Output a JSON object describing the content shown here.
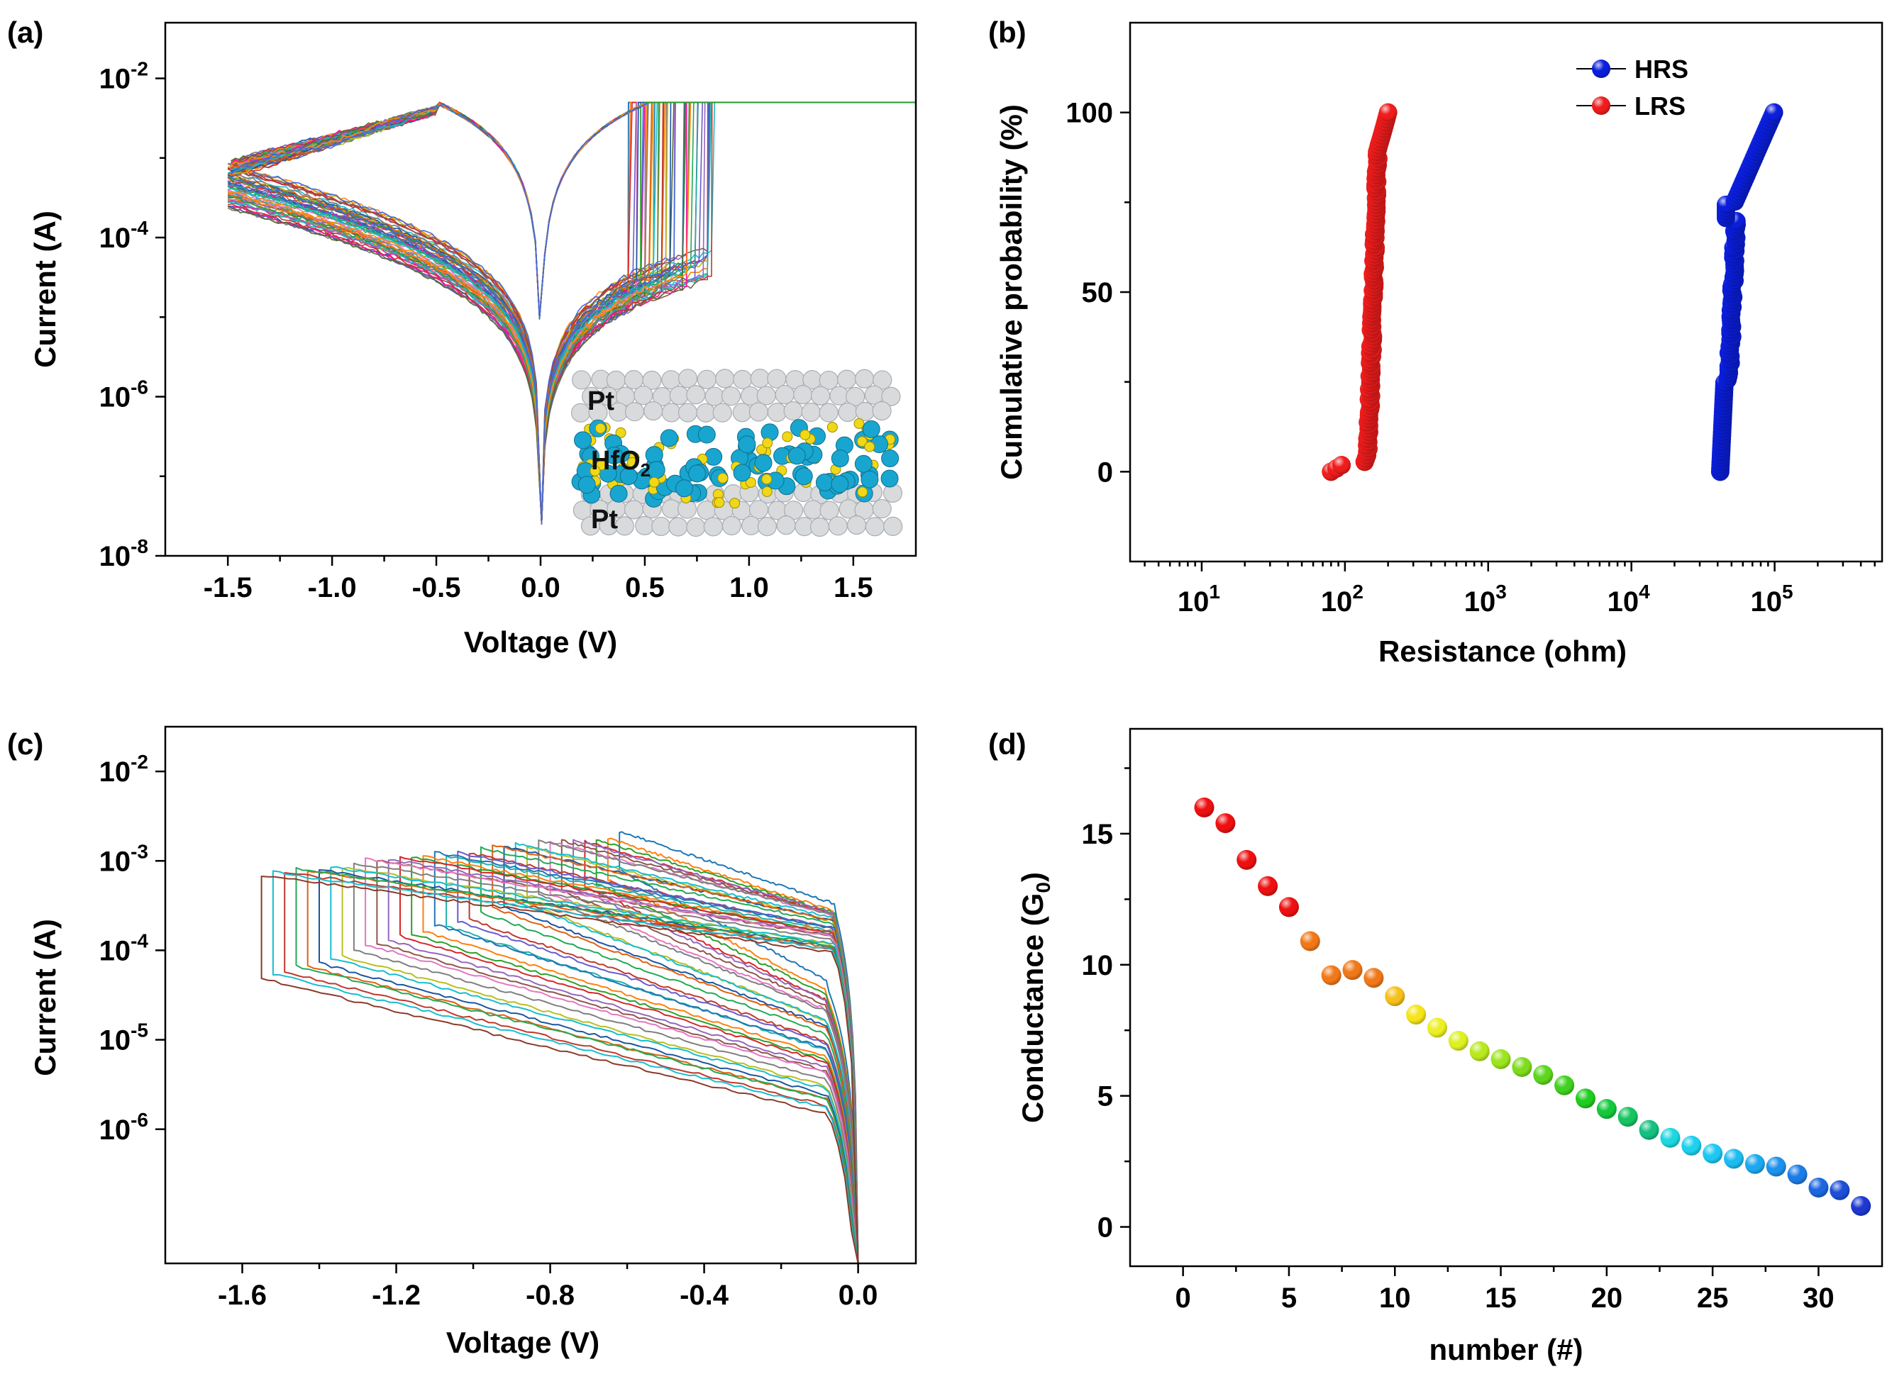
{
  "chart_data": [
    {
      "panel": "(a)",
      "type": "line",
      "xlabel": "Voltage (V)",
      "ylabel": "Current (A)",
      "yscale": "log",
      "xlim": [
        -1.8,
        1.8
      ],
      "ylim_exp": [
        -8,
        -1.3
      ],
      "xticks": [
        -1.5,
        -1.0,
        -0.5,
        0.0,
        0.5,
        1.0,
        1.5
      ],
      "xtick_labels": [
        "-1.5",
        "-1.0",
        "-0.5",
        "0.0",
        "0.5",
        "1.0",
        "1.5"
      ],
      "yticks_exp": [
        -8,
        -6,
        -4,
        -2
      ],
      "compliance_A": 0.005,
      "cycles": 60,
      "inset": {
        "top_label": "Pt",
        "middle_label_main": "HfO",
        "middle_label_sub": "2",
        "bottom_label": "Pt"
      }
    },
    {
      "panel": "(b)",
      "type": "scatter",
      "xlabel": "Resistance (ohm)",
      "ylabel": "Cumulative probability (%)",
      "xscale": "log",
      "xlim_exp": [
        0.5,
        5.75
      ],
      "ylim": [
        -25,
        125
      ],
      "xticks_exp": [
        1,
        2,
        3,
        4,
        5
      ],
      "yticks": [
        0,
        50,
        100
      ],
      "ytick_labels": [
        "0",
        "50",
        "100"
      ],
      "legend_position": "top-right",
      "series": [
        {
          "name": "HRS",
          "color": "#0a1edc",
          "range_ohm": [
            40000,
            100000
          ]
        },
        {
          "name": "LRS",
          "color": "#ee1c1c",
          "range_ohm": [
            80,
            200
          ]
        }
      ]
    },
    {
      "panel": "(c)",
      "type": "line",
      "xlabel": "Voltage (V)",
      "ylabel": "Current (A)",
      "yscale": "log",
      "xlim": [
        -1.8,
        0.15
      ],
      "ylim_exp": [
        -7.5,
        -1.5
      ],
      "xticks": [
        -1.6,
        -1.2,
        -0.8,
        -0.4,
        0.0
      ],
      "xtick_labels": [
        "-1.6",
        "-1.2",
        "-0.8",
        "-0.4",
        "0.0"
      ],
      "yticks_exp": [
        -6,
        -5,
        -4,
        -3,
        -2
      ],
      "cycles": 32
    },
    {
      "panel": "(d)",
      "type": "scatter",
      "xlabel": "number (#)",
      "ylabel_main": "Conductance (G",
      "ylabel_sub": "0",
      "ylabel_end": ")",
      "xlim": [
        -2.5,
        33
      ],
      "ylim": [
        -1.5,
        19
      ],
      "xticks": [
        0,
        5,
        10,
        15,
        20,
        25,
        30
      ],
      "yticks": [
        0,
        5,
        10,
        15
      ],
      "x": [
        1,
        2,
        3,
        4,
        5,
        6,
        7,
        8,
        9,
        10,
        11,
        12,
        13,
        14,
        15,
        16,
        17,
        18,
        19,
        20,
        21,
        22,
        23,
        24,
        25,
        26,
        27,
        28,
        29,
        30,
        31,
        32
      ],
      "values": [
        16.0,
        15.4,
        14.0,
        13.0,
        12.2,
        10.9,
        9.6,
        9.8,
        9.5,
        8.8,
        8.1,
        7.6,
        7.1,
        6.7,
        6.4,
        6.1,
        5.8,
        5.4,
        4.9,
        4.5,
        4.2,
        3.7,
        3.4,
        3.1,
        2.8,
        2.6,
        2.4,
        2.3,
        2.0,
        1.5,
        1.4,
        0.8
      ],
      "colors": [
        "#ee1010",
        "#ee1010",
        "#ee1010",
        "#ee1010",
        "#ee1010",
        "#f07818",
        "#f07818",
        "#f07818",
        "#f07818",
        "#f6c01a",
        "#f6e41a",
        "#ecef22",
        "#ddf022",
        "#b8e81e",
        "#9ce41c",
        "#7edc1c",
        "#5cd61c",
        "#40d020",
        "#20cc20",
        "#14c83c",
        "#14c460",
        "#14c080",
        "#1cd6e0",
        "#1cd0ee",
        "#1cc8f2",
        "#1cbcf2",
        "#1ca8f0",
        "#1c92ec",
        "#1c7ce6",
        "#1c66e0",
        "#1c4ed8",
        "#1c38d0"
      ]
    }
  ]
}
